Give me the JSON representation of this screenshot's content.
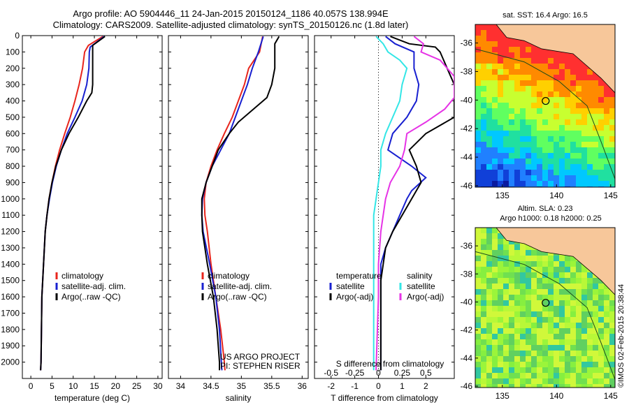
{
  "header": {
    "title_line1": "Argo profile: AO 5904446_11 24-Jan-2015 20150124_1186 40.057S 138.994E",
    "title_line2": "Climatology: CARS2009. Satellite-adjusted climatology: synTS_20150126.nc (1.8d later)"
  },
  "colors": {
    "climatology": "#e8251c",
    "satellite": "#1820d0",
    "argo": "#000000",
    "salinity_satellite": "#33e6e6",
    "salinity_argo": "#e633e6",
    "land": "#f7c79a"
  },
  "chart_data": [
    {
      "id": "temperature",
      "type": "line",
      "xlabel": "temperature (deg C)",
      "xlim": [
        -2,
        31
      ],
      "xticks": [
        0,
        5,
        10,
        15,
        20,
        25,
        30
      ],
      "ylim": [
        0,
        2100
      ],
      "yticks": [
        0,
        100,
        200,
        300,
        400,
        500,
        600,
        700,
        800,
        900,
        1000,
        1100,
        1200,
        1300,
        1400,
        1500,
        1600,
        1700,
        1800,
        1900,
        2000
      ],
      "legend": [
        "climatology",
        "satellite-adj. clim.",
        "Argo(..raw -QC)"
      ],
      "series": [
        {
          "name": "climatology",
          "points": [
            [
              17.0,
              5
            ],
            [
              13.6,
              60
            ],
            [
              12.7,
              100
            ],
            [
              12.2,
              200
            ],
            [
              11.4,
              300
            ],
            [
              10.4,
              400
            ],
            [
              9.3,
              500
            ],
            [
              8.0,
              600
            ],
            [
              6.8,
              700
            ],
            [
              5.8,
              800
            ],
            [
              5.0,
              900
            ],
            [
              4.3,
              1000
            ],
            [
              3.8,
              1100
            ],
            [
              3.4,
              1200
            ],
            [
              3.2,
              1300
            ],
            [
              3.0,
              1400
            ],
            [
              2.8,
              1500
            ],
            [
              2.6,
              1600
            ],
            [
              2.5,
              1800
            ],
            [
              2.4,
              2000
            ],
            [
              2.3,
              2050
            ]
          ]
        },
        {
          "name": "satellite-adj. clim.",
          "points": [
            [
              17.3,
              5
            ],
            [
              14.0,
              70
            ],
            [
              13.8,
              100
            ],
            [
              13.7,
              200
            ],
            [
              13.2,
              300
            ],
            [
              12.1,
              400
            ],
            [
              10.4,
              500
            ],
            [
              8.6,
              600
            ],
            [
              7.2,
              700
            ],
            [
              6.0,
              800
            ],
            [
              5.1,
              900
            ],
            [
              4.4,
              1000
            ],
            [
              3.8,
              1100
            ],
            [
              3.4,
              1200
            ],
            [
              3.2,
              1300
            ],
            [
              3.0,
              1400
            ],
            [
              2.8,
              1500
            ],
            [
              2.6,
              1600
            ],
            [
              2.5,
              1800
            ],
            [
              2.4,
              2000
            ],
            [
              2.3,
              2050
            ]
          ]
        },
        {
          "name": "Argo(..raw -QC)",
          "points": [
            [
              17.5,
              5
            ],
            [
              14.6,
              60
            ],
            [
              14.6,
              100
            ],
            [
              14.6,
              200
            ],
            [
              14.6,
              300
            ],
            [
              14.4,
              350
            ],
            [
              13.2,
              400
            ],
            [
              11.2,
              500
            ],
            [
              9.0,
              600
            ],
            [
              7.2,
              700
            ],
            [
              5.9,
              800
            ],
            [
              5.0,
              900
            ],
            [
              4.3,
              1000
            ],
            [
              3.8,
              1100
            ],
            [
              3.4,
              1200
            ],
            [
              3.2,
              1300
            ],
            [
              3.0,
              1400
            ],
            [
              2.8,
              1500
            ],
            [
              2.6,
              1600
            ],
            [
              2.5,
              1800
            ],
            [
              2.4,
              2000
            ],
            [
              2.3,
              2050
            ]
          ]
        }
      ]
    },
    {
      "id": "salinity",
      "type": "line",
      "xlabel": "salinity",
      "xlim": [
        33.8,
        36.1
      ],
      "xticks": [
        34,
        34.5,
        35,
        35.5,
        36
      ],
      "xticklabels": [
        "34",
        "34.5",
        "35",
        "35.5",
        "36"
      ],
      "ylim": [
        0,
        2100
      ],
      "legend": [
        "climatology",
        "satellite-adj. clim.",
        "Argo(..raw -QC)"
      ],
      "annotation_lines": [
        "US ARGO PROJECT",
        "PI: STEPHEN RISER"
      ],
      "series": [
        {
          "name": "climatology",
          "points": [
            [
              35.35,
              5
            ],
            [
              35.3,
              100
            ],
            [
              35.12,
              200
            ],
            [
              35.05,
              300
            ],
            [
              34.95,
              400
            ],
            [
              34.85,
              500
            ],
            [
              34.72,
              600
            ],
            [
              34.6,
              700
            ],
            [
              34.5,
              800
            ],
            [
              34.42,
              900
            ],
            [
              34.39,
              1000
            ],
            [
              34.4,
              1100
            ],
            [
              34.44,
              1200
            ],
            [
              34.5,
              1400
            ],
            [
              34.58,
              1600
            ],
            [
              34.66,
              1800
            ],
            [
              34.72,
              2000
            ],
            [
              34.73,
              2050
            ]
          ]
        },
        {
          "name": "satellite-adj. clim.",
          "points": [
            [
              35.36,
              5
            ],
            [
              35.28,
              100
            ],
            [
              35.18,
              200
            ],
            [
              35.1,
              300
            ],
            [
              35.0,
              400
            ],
            [
              34.9,
              500
            ],
            [
              34.8,
              600
            ],
            [
              34.66,
              700
            ],
            [
              34.52,
              800
            ],
            [
              34.42,
              900
            ],
            [
              34.36,
              1000
            ],
            [
              34.35,
              1100
            ],
            [
              34.37,
              1200
            ],
            [
              34.48,
              1400
            ],
            [
              34.58,
              1600
            ],
            [
              34.64,
              1800
            ],
            [
              34.67,
              2000
            ],
            [
              34.68,
              2050
            ]
          ]
        },
        {
          "name": "Argo(..raw -QC)",
          "points": [
            [
              35.62,
              5
            ],
            [
              35.55,
              50
            ],
            [
              35.55,
              100
            ],
            [
              35.55,
              200
            ],
            [
              35.5,
              300
            ],
            [
              35.42,
              380
            ],
            [
              35.2,
              450
            ],
            [
              34.95,
              530
            ],
            [
              34.8,
              600
            ],
            [
              34.62,
              700
            ],
            [
              34.52,
              800
            ],
            [
              34.42,
              900
            ],
            [
              34.35,
              1000
            ],
            [
              34.35,
              1100
            ],
            [
              34.36,
              1200
            ],
            [
              34.44,
              1400
            ],
            [
              34.54,
              1600
            ],
            [
              34.6,
              1800
            ],
            [
              34.64,
              2000
            ],
            [
              34.64,
              2050
            ]
          ]
        }
      ]
    },
    {
      "id": "differences",
      "type": "line",
      "xlabel": "T difference from climatology",
      "top_xlabel": "S difference from climatology",
      "xlim": [
        -2.7,
        3.2
      ],
      "xticks": [
        -2,
        -1,
        0,
        1,
        2
      ],
      "top_xticks": [
        -0.5,
        -0.25,
        0,
        0.25,
        0.5
      ],
      "top_xticklabels": [
        "-0.5",
        "-0.25",
        "0",
        "0.25",
        "0.5"
      ],
      "ylim": [
        0,
        2100
      ],
      "legend_left": [
        "temperature",
        "satellite",
        "Argo(-adj)"
      ],
      "legend_right": [
        "salinity",
        "satellite",
        "Argo(-adj)"
      ],
      "series": [
        {
          "name": "temperature satellite",
          "points": [
            [
              0.3,
              5
            ],
            [
              0.7,
              50
            ],
            [
              1.5,
              100
            ],
            [
              1.5,
              200
            ],
            [
              1.7,
              300
            ],
            [
              1.6,
              400
            ],
            [
              1.2,
              500
            ],
            [
              0.6,
              600
            ],
            [
              0.4,
              700
            ],
            [
              1.4,
              800
            ],
            [
              2.0,
              870
            ],
            [
              1.4,
              950
            ],
            [
              1.2,
              1000
            ],
            [
              0.9,
              1100
            ],
            [
              0.6,
              1200
            ],
            [
              0.3,
              1300
            ],
            [
              0.1,
              1400
            ],
            [
              0.1,
              1600
            ],
            [
              0.1,
              2050
            ]
          ]
        },
        {
          "name": "temperature Argo(-adj)",
          "points": [
            [
              0.5,
              5
            ],
            [
              1.3,
              50
            ],
            [
              2.4,
              70
            ],
            [
              2.6,
              100
            ],
            [
              2.9,
              200
            ],
            [
              3.2,
              300
            ],
            [
              3.2,
              400
            ],
            [
              3.2,
              500
            ],
            [
              2.0,
              600
            ],
            [
              1.3,
              700
            ],
            [
              1.6,
              800
            ],
            [
              1.8,
              900
            ],
            [
              1.4,
              1000
            ],
            [
              1.0,
              1100
            ],
            [
              0.6,
              1200
            ],
            [
              0.3,
              1300
            ],
            [
              0.1,
              1500
            ],
            [
              0.1,
              2050
            ]
          ]
        },
        {
          "name": "salinity satellite",
          "points": [
            [
              -0.1,
              5
            ],
            [
              0.2,
              50
            ],
            [
              0.4,
              100
            ],
            [
              0.9,
              150
            ],
            [
              1.2,
              200
            ],
            [
              1.0,
              300
            ],
            [
              0.9,
              400
            ],
            [
              0.6,
              500
            ],
            [
              0.3,
              600
            ],
            [
              0.1,
              700
            ],
            [
              0.1,
              800
            ],
            [
              0.0,
              900
            ],
            [
              -0.1,
              1000
            ],
            [
              -0.2,
              1100
            ],
            [
              -0.2,
              1300
            ],
            [
              -0.2,
              1600
            ],
            [
              -0.2,
              1800
            ],
            [
              -0.2,
              2050
            ]
          ]
        },
        {
          "name": "salinity Argo(-adj)",
          "points": [
            [
              1.5,
              5
            ],
            [
              1.9,
              50
            ],
            [
              1.8,
              100
            ],
            [
              2.6,
              150
            ],
            [
              3.2,
              250
            ],
            [
              3.2,
              380
            ],
            [
              2.8,
              450
            ],
            [
              2.0,
              530
            ],
            [
              1.2,
              600
            ],
            [
              1.1,
              700
            ],
            [
              0.9,
              800
            ],
            [
              0.5,
              900
            ],
            [
              0.3,
              1000
            ],
            [
              0.2,
              1100
            ],
            [
              0.1,
              1200
            ],
            [
              0.0,
              1400
            ],
            [
              0.0,
              1600
            ],
            [
              -0.1,
              2050
            ]
          ]
        }
      ]
    }
  ],
  "maps": [
    {
      "title": "sat. SST: 16.4  Argo: 16.5",
      "xticks": [
        "135",
        "140",
        "145"
      ],
      "yticks": [
        "-36",
        "-38",
        "-40",
        "-42",
        "-44",
        "-46"
      ]
    },
    {
      "title_line1": "Altim. SLA: 0.23",
      "title_line2": "Argo h1000: 0.18 h2000: 0.25",
      "xticks": [
        "135",
        "140",
        "145"
      ],
      "yticks": [
        "-36",
        "-38",
        "-40",
        "-42",
        "-44",
        "-46"
      ]
    }
  ],
  "credit": "©IMOS 02-Feb-2015 20:38:44"
}
